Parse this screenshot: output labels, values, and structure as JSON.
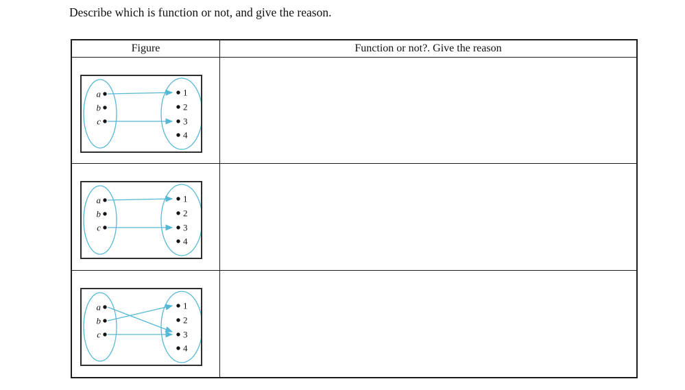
{
  "page": {
    "title": "Describe which is function or not, and give the reason."
  },
  "table": {
    "headers": {
      "figure": "Figure",
      "answer": "Function or not?. Give the reason"
    },
    "rows": [
      {
        "figure": {
          "left_set": [
            "a",
            "b",
            "c"
          ],
          "right_set": [
            "1",
            "2",
            "3",
            "4"
          ],
          "mappings": [
            {
              "from": "a",
              "to": "1"
            },
            {
              "from": "c",
              "to": "3"
            }
          ]
        },
        "answer": ""
      },
      {
        "figure": {
          "left_set": [
            "a",
            "b",
            "c"
          ],
          "right_set": [
            "1",
            "2",
            "3",
            "4"
          ],
          "mappings": [
            {
              "from": "a",
              "to": "1"
            },
            {
              "from": "c",
              "to": "3"
            }
          ]
        },
        "answer": ""
      },
      {
        "figure": {
          "left_set": [
            "a",
            "b",
            "c"
          ],
          "right_set": [
            "1",
            "2",
            "3",
            "4"
          ],
          "mappings": [
            {
              "from": "a",
              "to": "3"
            },
            {
              "from": "b",
              "to": "1"
            },
            {
              "from": "c",
              "to": "3"
            }
          ]
        },
        "answer": ""
      }
    ]
  },
  "colors": {
    "diagram_blue": "#55b8d4",
    "dot": "#151515",
    "label_text": "#111111",
    "box_border": "#2e2e2e",
    "table_border": "#1c1c1c"
  }
}
